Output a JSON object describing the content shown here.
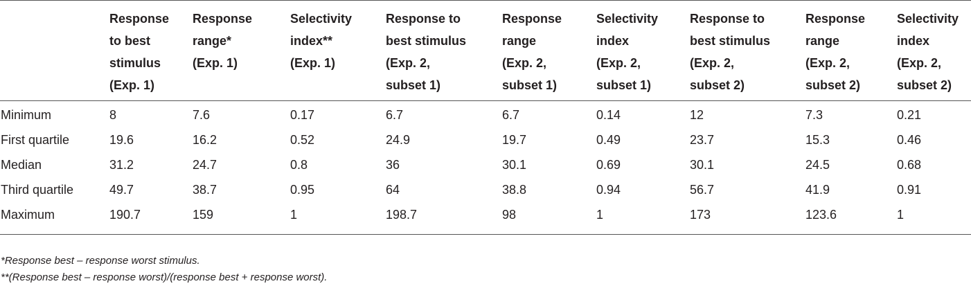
{
  "table": {
    "headers": [
      "",
      "Response to best stimulus (Exp. 1)",
      "Response range* (Exp. 1)",
      "Selectivity index** (Exp. 1)",
      "Response to best stimulus (Exp. 2, subset 1)",
      "Response range (Exp. 2, subset 1)",
      "Selectivity index (Exp. 2, subset 1)",
      "Response to best stimulus (Exp. 2, subset 2)",
      "Response range (Exp. 2, subset 2)",
      "Selectivity index (Exp. 2, subset 2)"
    ],
    "header_lines": [
      [],
      [
        "Response",
        "to best",
        "stimulus",
        "(Exp. 1)"
      ],
      [
        "Response",
        "range*",
        "(Exp. 1)"
      ],
      [
        "Selectivity",
        "index**",
        "(Exp. 1)"
      ],
      [
        "Response to",
        "best stimulus",
        "(Exp. 2,",
        "subset 1)"
      ],
      [
        "Response",
        "range",
        "(Exp. 2,",
        "subset 1)"
      ],
      [
        "Selectivity",
        "index",
        "(Exp. 2,",
        "subset 1)"
      ],
      [
        "Response to",
        "best stimulus",
        "(Exp. 2,",
        "subset 2)"
      ],
      [
        "Response",
        "range",
        "(Exp. 2,",
        "subset 2)"
      ],
      [
        "Selectivity",
        "index",
        "(Exp. 2,",
        "subset 2)"
      ]
    ],
    "rows": [
      [
        "Minimum",
        "8",
        "7.6",
        "0.17",
        "6.7",
        "6.7",
        "0.14",
        "12",
        "7.3",
        "0.21"
      ],
      [
        "First quartile",
        "19.6",
        "16.2",
        "0.52",
        "24.9",
        "19.7",
        "0.49",
        "23.7",
        "15.3",
        "0.46"
      ],
      [
        "Median",
        "31.2",
        "24.7",
        "0.8",
        "36",
        "30.1",
        "0.69",
        "30.1",
        "24.5",
        "0.68"
      ],
      [
        "Third quartile",
        "49.7",
        "38.7",
        "0.95",
        "64",
        "38.8",
        "0.94",
        "56.7",
        "41.9",
        "0.91"
      ],
      [
        "Maximum",
        "190.7",
        "159",
        "1",
        "198.7",
        "98",
        "1",
        "173",
        "123.6",
        "1"
      ]
    ]
  },
  "footnotes": [
    "*Response best – response worst stimulus.",
    "**(Response best – response worst)/(response best + response worst)."
  ]
}
